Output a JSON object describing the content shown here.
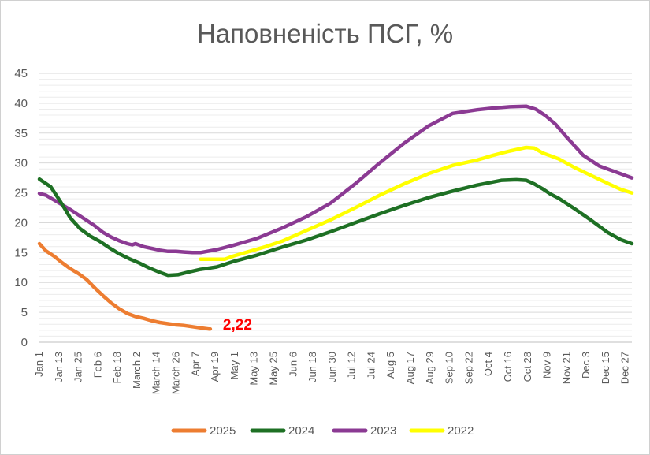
{
  "chart_data": {
    "type": "line",
    "title": "Наповненість ПСГ, %",
    "xlabel": "",
    "ylabel": "",
    "ylim": [
      0,
      45
    ],
    "yticks": [
      0,
      5,
      10,
      15,
      20,
      25,
      30,
      35,
      40,
      45
    ],
    "grid": true,
    "legend_position": "bottom",
    "x_tick_labels": [
      "Jan 1",
      "Jan 13",
      "Jan 25",
      "Feb 6",
      "Feb 18",
      "March 2",
      "March 14",
      "March 26",
      "Apr 7",
      "Apr 19",
      "May 1",
      "May 13",
      "May 25",
      "Jun 6",
      "Jun 18",
      "Jun 30",
      "Jul 12",
      "Jul 24",
      "Aug 5",
      "Aug 17",
      "Aug 29",
      "Sep 10",
      "Sep 22",
      "Oct 4",
      "Oct 16",
      "Oct 28",
      "Nov 9",
      "Nov 21",
      "Dec 3",
      "Dec 15",
      "Dec 27"
    ],
    "x_unit": "day of year",
    "x_range": [
      1,
      365
    ],
    "series": [
      {
        "name": "2025",
        "color": "#ED7D31",
        "x": [
          1,
          5,
          10,
          15,
          20,
          25,
          30,
          35,
          40,
          45,
          50,
          55,
          60,
          65,
          70,
          75,
          80,
          85,
          90,
          95,
          100,
          105,
          106
        ],
        "y": [
          16.5,
          15.3,
          14.4,
          13.3,
          12.3,
          11.5,
          10.5,
          9.1,
          7.8,
          6.6,
          5.6,
          4.8,
          4.3,
          4.0,
          3.6,
          3.3,
          3.1,
          2.9,
          2.8,
          2.6,
          2.4,
          2.22,
          2.22
        ]
      },
      {
        "name": "2024",
        "color": "#1E7024",
        "x": [
          1,
          8,
          14,
          20,
          26,
          32,
          38,
          44,
          50,
          56,
          62,
          68,
          74,
          80,
          86,
          92,
          100,
          110,
          120,
          135,
          150,
          165,
          180,
          195,
          210,
          225,
          240,
          255,
          270,
          285,
          294,
          300,
          305,
          310,
          315,
          320,
          330,
          340,
          350,
          358,
          365
        ],
        "y": [
          27.3,
          26.0,
          23.5,
          20.8,
          19.0,
          17.8,
          16.9,
          15.8,
          14.8,
          14.0,
          13.3,
          12.5,
          11.8,
          11.2,
          11.3,
          11.7,
          12.2,
          12.6,
          13.5,
          14.6,
          15.9,
          17.1,
          18.5,
          20.0,
          21.5,
          22.9,
          24.2,
          25.3,
          26.3,
          27.1,
          27.2,
          27.1,
          26.5,
          25.7,
          24.8,
          24.1,
          22.3,
          20.4,
          18.4,
          17.2,
          16.5
        ]
      },
      {
        "name": "2023",
        "color": "#8B3A93",
        "x": [
          1,
          5,
          10,
          15,
          20,
          25,
          30,
          35,
          40,
          45,
          50,
          55,
          58,
          60,
          65,
          70,
          75,
          80,
          85,
          90,
          95,
          100,
          110,
          120,
          135,
          150,
          165,
          180,
          195,
          210,
          225,
          240,
          255,
          270,
          280,
          290,
          300,
          306,
          312,
          318,
          325,
          335,
          345,
          355,
          365
        ],
        "y": [
          24.9,
          24.6,
          23.8,
          23.0,
          22.2,
          21.3,
          20.4,
          19.5,
          18.4,
          17.6,
          17.0,
          16.5,
          16.3,
          16.5,
          16.0,
          15.7,
          15.4,
          15.2,
          15.2,
          15.1,
          15.0,
          15.0,
          15.5,
          16.2,
          17.4,
          19.1,
          21.0,
          23.3,
          26.5,
          30.0,
          33.3,
          36.2,
          38.3,
          38.9,
          39.2,
          39.4,
          39.5,
          39.0,
          37.9,
          36.5,
          34.3,
          31.3,
          29.5,
          28.5,
          27.5
        ]
      },
      {
        "name": "2022",
        "color": "#FFFF00",
        "x": [
          100,
          105,
          110,
          115,
          120,
          130,
          140,
          150,
          165,
          180,
          195,
          210,
          225,
          240,
          255,
          270,
          280,
          290,
          300,
          305,
          310,
          320,
          330,
          340,
          350,
          358,
          365
        ],
        "y": [
          13.9,
          13.9,
          13.9,
          13.9,
          14.4,
          15.2,
          16.0,
          16.9,
          18.7,
          20.5,
          22.5,
          24.6,
          26.5,
          28.2,
          29.6,
          30.5,
          31.3,
          32.0,
          32.6,
          32.5,
          31.7,
          30.7,
          29.2,
          27.9,
          26.6,
          25.6,
          25.0
        ]
      }
    ],
    "annotations": [
      {
        "text": "2,22",
        "color": "#FF0000",
        "series": "2025",
        "x": 106,
        "y": 2.22
      }
    ]
  }
}
